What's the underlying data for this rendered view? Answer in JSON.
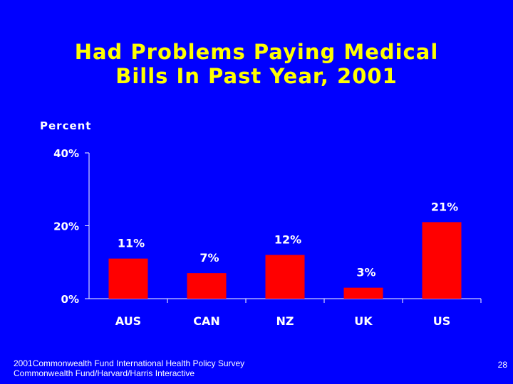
{
  "slide": {
    "title_line1": "Had Problems Paying Medical",
    "title_line2": "Bills In Past Year, 2001",
    "footnote_line1": "2001Commonwealth Fund International Health Policy Survey",
    "footnote_line2": "Commonwealth Fund/Harvard/Harris Interactive",
    "page_number": "28"
  },
  "colors": {
    "background": "#0000ff",
    "title": "#ffff00",
    "bar": "#ff0000",
    "text": "#ffffff"
  },
  "chart_data": {
    "type": "bar",
    "title": "Had Problems Paying Medical Bills In Past Year, 2001",
    "ylabel": "Percent",
    "xlabel": "",
    "categories": [
      "AUS",
      "CAN",
      "NZ",
      "UK",
      "US"
    ],
    "values": [
      11,
      7,
      12,
      3,
      21
    ],
    "data_labels": [
      "11%",
      "7%",
      "12%",
      "3%",
      "21%"
    ],
    "yticks": [
      0,
      20,
      40
    ],
    "ytick_labels": [
      "0%",
      "20%",
      "40%"
    ],
    "ylim": [
      0,
      40
    ],
    "grid": false,
    "legend": "none"
  }
}
